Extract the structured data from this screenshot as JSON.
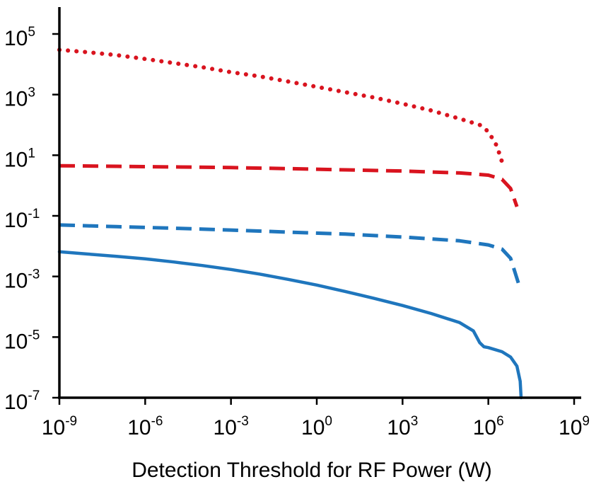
{
  "chart_data": {
    "type": "line",
    "title": "",
    "xlabel": "Detection Threshold for RF Power (W)",
    "ylabel": "",
    "x_scale": "log10",
    "y_scale": "log10",
    "xlim": [
      1e-09,
      1000000000.0
    ],
    "ylim": [
      1e-07,
      100000.0
    ],
    "grid": false,
    "legend": "none",
    "x_ticks": [
      {
        "value": 1e-09,
        "base": "10",
        "exp": "-9"
      },
      {
        "value": 1e-06,
        "base": "10",
        "exp": "-6"
      },
      {
        "value": 0.001,
        "base": "10",
        "exp": "-3"
      },
      {
        "value": 1,
        "base": "10",
        "exp": "0"
      },
      {
        "value": 1000.0,
        "base": "10",
        "exp": "3"
      },
      {
        "value": 1000000.0,
        "base": "10",
        "exp": "6"
      },
      {
        "value": 1000000000.0,
        "base": "10",
        "exp": "9"
      }
    ],
    "y_ticks": [
      {
        "value": 100000.0,
        "base": "10",
        "exp": "5"
      },
      {
        "value": 1000.0,
        "base": "10",
        "exp": "3"
      },
      {
        "value": 10.0,
        "base": "10",
        "exp": "1"
      },
      {
        "value": 0.1,
        "base": "10",
        "exp": "-1"
      },
      {
        "value": 0.001,
        "base": "10",
        "exp": "-3"
      },
      {
        "value": 1e-05,
        "base": "10",
        "exp": "-5"
      },
      {
        "value": 1e-07,
        "base": "10",
        "exp": "-7"
      }
    ],
    "series": [
      {
        "color": "#d9141f",
        "style": "dotted",
        "x": [
          1e-09,
          1e-08,
          1e-07,
          1e-06,
          1e-05,
          0.0001,
          0.001,
          0.01,
          0.1,
          1,
          10.0,
          100.0,
          1000.0,
          10000.0,
          100000.0,
          500000.0,
          1000000.0,
          2000000.0,
          3000000.0
        ],
        "y": [
          30000,
          25000,
          20000,
          15000,
          11000,
          8000,
          5500,
          4000,
          2700,
          1800,
          1200,
          800,
          500,
          300,
          160,
          100,
          60,
          20,
          6
        ]
      },
      {
        "color": "#d9141f",
        "style": "dashed",
        "x": [
          1e-09,
          1e-07,
          1e-05,
          0.001,
          0.1,
          10.0,
          1000.0,
          100000.0,
          1000000.0,
          3000000.0,
          6000000.0,
          10000000.0
        ],
        "y": [
          4.5,
          4.3,
          4.1,
          3.9,
          3.6,
          3.3,
          3.0,
          2.6,
          2.2,
          1.6,
          0.8,
          0.2
        ]
      },
      {
        "color": "#1f76bd",
        "style": "dashed",
        "x": [
          1e-09,
          1e-07,
          1e-05,
          0.001,
          0.1,
          10.0,
          1000.0,
          100000.0,
          1000000.0,
          3000000.0,
          6000000.0,
          12000000.0
        ],
        "y": [
          0.05,
          0.044,
          0.039,
          0.034,
          0.029,
          0.025,
          0.02,
          0.015,
          0.011,
          0.008,
          0.004,
          0.0005
        ]
      },
      {
        "color": "#1f76bd",
        "style": "solid",
        "x": [
          1e-09,
          1e-08,
          1e-07,
          1e-06,
          1e-05,
          0.0001,
          0.001,
          0.01,
          0.1,
          1,
          10.0,
          100.0,
          1000.0,
          10000.0,
          100000.0,
          300000.0,
          500000.0,
          700000.0,
          1000000.0,
          3000000.0,
          6000000.0,
          10000000.0,
          13000000.0,
          14000000.0
        ],
        "y": [
          0.0065,
          0.0055,
          0.0046,
          0.0038,
          0.003,
          0.0023,
          0.0017,
          0.0012,
          0.0008,
          0.00052,
          0.00032,
          0.00019,
          0.00011,
          6e-05,
          3e-05,
          1.6e-05,
          6.5e-06,
          4.8e-06,
          4.5e-06,
          3.3e-06,
          2.2e-06,
          1.1e-06,
          3.5e-07,
          1e-07
        ]
      }
    ]
  }
}
